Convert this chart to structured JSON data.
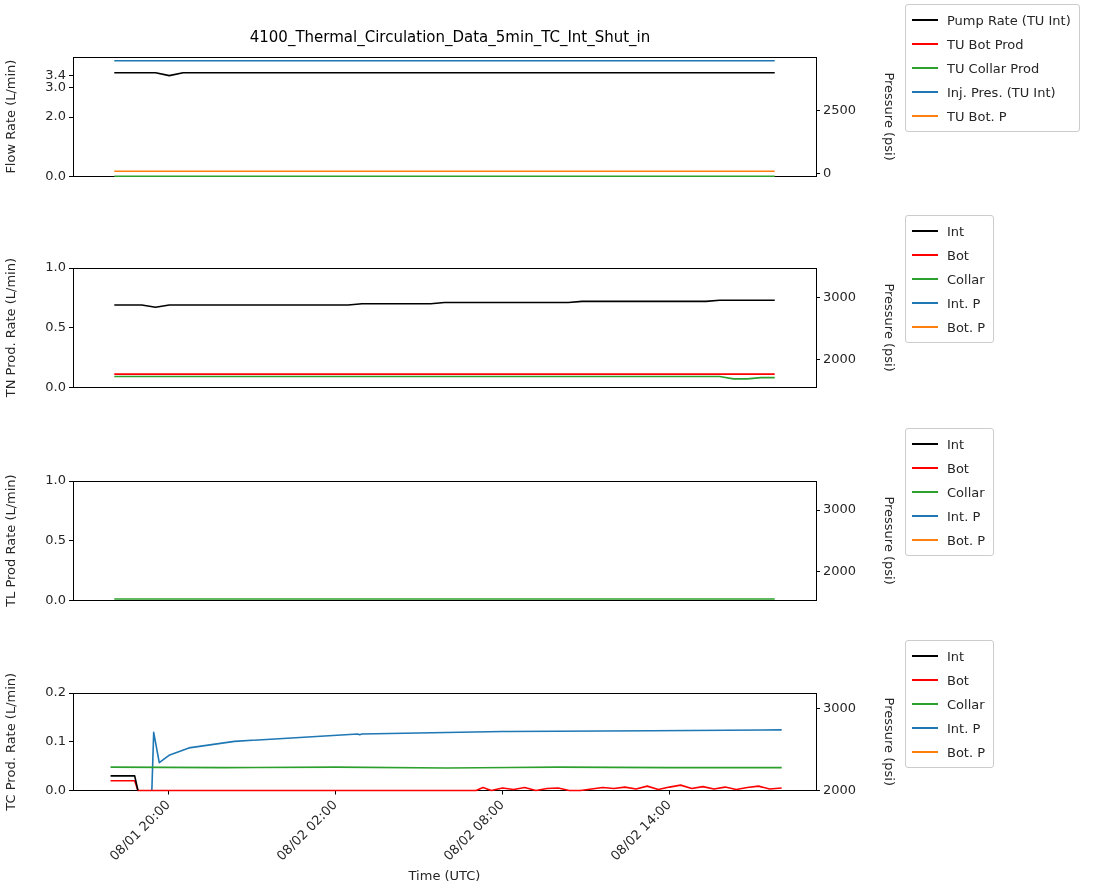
{
  "chart_data": [
    {
      "type": "line",
      "title": "4100_Thermal_Circulation_Data_5min_TC_Int_Shut_in",
      "ylabel": "Flow Rate (L/min)",
      "y2label": "Pressure (psi)",
      "marker": "none",
      "legend": "right",
      "tick_labels": "y",
      "categories": [
        null,
        null,
        null,
        null,
        null,
        null,
        null,
        null,
        null,
        null,
        null,
        null,
        null,
        null,
        null,
        null,
        null,
        null,
        null,
        null,
        null,
        null,
        null,
        null,
        null,
        null,
        null,
        null,
        null,
        null,
        null,
        null,
        null,
        null,
        null,
        null,
        null,
        null,
        null,
        null,
        null,
        null,
        null,
        null,
        null,
        null,
        null,
        null,
        null,
        null,
        null,
        null,
        null,
        null,
        null
      ],
      "ylim": [
        0,
        4.03
      ],
      "yticks": [
        {
          "value": 0,
          "label": "0.0"
        },
        {
          "value": 2,
          "label": "2.0"
        },
        {
          "value": 3,
          "label": "3.0"
        },
        {
          "value": 3.4,
          "label": "3.4"
        }
      ],
      "y2lim": [
        -100,
        4650
      ],
      "y2ticks": [
        0,
        2500
      ],
      "series": [
        {
          "name": "Pump Rate (TU Int)",
          "color": "#000000",
          "values": [
            null,
            null,
            null,
            3.5,
            3.5,
            3.5,
            3.5,
            3.4,
            3.5,
            3.5,
            3.5,
            3.5,
            3.5,
            3.5,
            3.5,
            3.5,
            3.5,
            3.5,
            3.5,
            3.5,
            3.5,
            3.5,
            3.5,
            3.5,
            3.5,
            3.5,
            3.5,
            3.5,
            3.5,
            3.5,
            3.5,
            3.5,
            3.5,
            3.5,
            3.5,
            3.5,
            3.5,
            3.5,
            3.5,
            3.5,
            3.5,
            3.5,
            3.5,
            3.5,
            3.5,
            3.5,
            3.5,
            3.5,
            3.5,
            3.5,
            3.5,
            3.5,
            null,
            null,
            null
          ]
        },
        {
          "name": "TU Bot Prod",
          "color": "#ff0000",
          "values": [
            null,
            null,
            null,
            null,
            null,
            null,
            null,
            null,
            null,
            null,
            null,
            null,
            null,
            null,
            null,
            null,
            null,
            null,
            null,
            null,
            null,
            null,
            null,
            null,
            null,
            null,
            null,
            null,
            null,
            null,
            null,
            null,
            null,
            null,
            null,
            null,
            null,
            null,
            null,
            null,
            null,
            null,
            null,
            null,
            null,
            null,
            null,
            null,
            null,
            null,
            null,
            null,
            null,
            null,
            null
          ]
        },
        {
          "name": "TU Collar Prod",
          "color": "#2ca02c",
          "values": [
            null,
            null,
            null,
            0,
            0,
            0,
            0,
            0,
            0,
            0,
            0,
            0,
            0,
            0,
            0,
            0,
            0,
            0,
            0,
            0,
            0,
            0,
            0,
            0,
            0,
            0,
            0,
            0,
            0,
            0,
            0,
            0,
            0,
            0,
            0,
            0,
            0,
            0,
            0,
            0,
            0,
            0,
            0,
            0,
            0,
            0,
            0,
            0,
            0,
            0,
            0,
            0,
            null,
            null,
            null
          ]
        },
        {
          "name": "Inj. Pres. (TU Int)",
          "color": "#1f77b4",
          "axis": "y2",
          "values": [
            null,
            null,
            null,
            4500,
            4500,
            4500,
            4500,
            4500,
            4500,
            4500,
            4500,
            4500,
            4500,
            4500,
            4500,
            4500,
            4500,
            4500,
            4500,
            4500,
            4500,
            4500,
            4500,
            4500,
            4500,
            4500,
            4500,
            4500,
            4500,
            4500,
            4500,
            4500,
            4500,
            4500,
            4500,
            4500,
            4500,
            4500,
            4500,
            4500,
            4500,
            4500,
            4500,
            4500,
            4500,
            4500,
            4500,
            4500,
            4500,
            4500,
            4500,
            4500,
            null,
            null,
            null
          ]
        },
        {
          "name": "TU Bot. P",
          "color": "#ff7f0e",
          "axis": "y2",
          "values": [
            null,
            null,
            null,
            100,
            100,
            100,
            100,
            100,
            100,
            100,
            100,
            100,
            100,
            100,
            100,
            100,
            100,
            100,
            100,
            100,
            100,
            100,
            100,
            100,
            100,
            100,
            100,
            100,
            100,
            100,
            100,
            100,
            100,
            100,
            100,
            100,
            100,
            100,
            100,
            100,
            100,
            100,
            100,
            100,
            100,
            100,
            100,
            100,
            100,
            100,
            100,
            100,
            null,
            null,
            null
          ]
        }
      ]
    },
    {
      "type": "line",
      "ylabel": "TN Prod. Rate (L/min)",
      "y2label": "Pressure (psi)",
      "marker": "none",
      "legend": "right",
      "tick_labels": "y",
      "categories": [
        null,
        null,
        null,
        null,
        null,
        null,
        null,
        null,
        null,
        null,
        null,
        null,
        null,
        null,
        null,
        null,
        null,
        null,
        null,
        null,
        null,
        null,
        null,
        null,
        null,
        null,
        null,
        null,
        null,
        null,
        null,
        null,
        null,
        null,
        null,
        null,
        null,
        null,
        null,
        null,
        null,
        null,
        null,
        null,
        null,
        null,
        null,
        null,
        null,
        null,
        null,
        null,
        null,
        null,
        null
      ],
      "ylim": [
        0,
        1
      ],
      "yticks": [
        {
          "value": 0,
          "label": "0.0"
        },
        {
          "value": 0.5,
          "label": "0.5"
        },
        {
          "value": 1,
          "label": "1.0"
        }
      ],
      "y2lim": [
        1550,
        3480
      ],
      "y2ticks": [
        2000,
        3000
      ],
      "series": [
        {
          "name": "Int",
          "color": "#000000",
          "values": [
            null,
            null,
            null,
            0.69,
            0.69,
            0.69,
            0.67,
            0.69,
            0.69,
            0.69,
            0.69,
            0.69,
            0.69,
            0.69,
            0.69,
            0.69,
            0.69,
            0.69,
            0.69,
            0.69,
            0.69,
            0.7,
            0.7,
            0.7,
            0.7,
            0.7,
            0.7,
            0.71,
            0.71,
            0.71,
            0.71,
            0.71,
            0.71,
            0.71,
            0.71,
            0.71,
            0.71,
            0.72,
            0.72,
            0.72,
            0.72,
            0.72,
            0.72,
            0.72,
            0.72,
            0.72,
            0.72,
            0.73,
            0.73,
            0.73,
            0.73,
            0.73,
            null,
            null,
            null
          ]
        },
        {
          "name": "Bot",
          "color": "#ff0000",
          "values": [
            null,
            null,
            null,
            0.11,
            0.11,
            0.11,
            0.11,
            0.11,
            0.11,
            0.11,
            0.11,
            0.11,
            0.11,
            0.11,
            0.11,
            0.11,
            0.11,
            0.11,
            0.11,
            0.11,
            0.11,
            0.11,
            0.11,
            0.11,
            0.11,
            0.11,
            0.11,
            0.11,
            0.11,
            0.11,
            0.11,
            0.11,
            0.11,
            0.11,
            0.11,
            0.11,
            0.11,
            0.11,
            0.11,
            0.11,
            0.11,
            0.11,
            0.11,
            0.11,
            0.11,
            0.11,
            0.11,
            0.11,
            0.11,
            0.11,
            0.11,
            0.11,
            null,
            null,
            null
          ]
        },
        {
          "name": "Collar",
          "color": "#2ca02c",
          "values": [
            null,
            null,
            null,
            0.09,
            0.09,
            0.09,
            0.09,
            0.09,
            0.09,
            0.09,
            0.09,
            0.09,
            0.09,
            0.09,
            0.09,
            0.09,
            0.09,
            0.09,
            0.09,
            0.09,
            0.09,
            0.09,
            0.09,
            0.09,
            0.09,
            0.09,
            0.09,
            0.09,
            0.09,
            0.09,
            0.09,
            0.09,
            0.09,
            0.09,
            0.09,
            0.09,
            0.09,
            0.09,
            0.09,
            0.09,
            0.09,
            0.09,
            0.09,
            0.09,
            0.09,
            0.09,
            0.09,
            0.09,
            0.07,
            0.07,
            0.08,
            0.08,
            null,
            null,
            null
          ]
        },
        {
          "name": "Int. P",
          "color": "#1f77b4",
          "axis": "y2",
          "values": [
            null,
            null,
            null,
            null,
            null,
            null,
            null,
            null,
            null,
            null,
            null,
            null,
            null,
            null,
            null,
            null,
            null,
            null,
            null,
            null,
            null,
            null,
            null,
            null,
            null,
            null,
            null,
            null,
            null,
            null,
            null,
            null,
            null,
            null,
            null,
            null,
            null,
            null,
            null,
            null,
            null,
            null,
            null,
            null,
            null,
            null,
            null,
            null,
            null,
            null,
            null,
            null,
            null,
            null,
            null
          ]
        },
        {
          "name": "Bot. P",
          "color": "#ff7f0e",
          "axis": "y2",
          "values": [
            null,
            null,
            null,
            null,
            null,
            null,
            null,
            null,
            null,
            null,
            null,
            null,
            null,
            null,
            null,
            null,
            null,
            null,
            null,
            null,
            null,
            null,
            null,
            null,
            null,
            null,
            null,
            null,
            null,
            null,
            null,
            null,
            null,
            null,
            null,
            null,
            null,
            null,
            null,
            null,
            null,
            null,
            null,
            null,
            null,
            null,
            null,
            null,
            null,
            null,
            null,
            null,
            null,
            null,
            null
          ]
        }
      ]
    },
    {
      "type": "line",
      "ylabel": "TL Prod Rate (L/min)",
      "y2label": "Pressure (psi)",
      "marker": "none",
      "legend": "right",
      "tick_labels": "y",
      "categories": [
        null,
        null,
        null,
        null,
        null,
        null,
        null,
        null,
        null,
        null,
        null,
        null,
        null,
        null,
        null,
        null,
        null,
        null,
        null,
        null,
        null,
        null,
        null,
        null,
        null,
        null,
        null,
        null,
        null,
        null,
        null,
        null,
        null,
        null,
        null,
        null,
        null,
        null,
        null,
        null,
        null,
        null,
        null,
        null,
        null,
        null,
        null,
        null,
        null,
        null,
        null,
        null,
        null,
        null,
        null
      ],
      "ylim": [
        0,
        1
      ],
      "yticks": [
        {
          "value": 0,
          "label": "0.0"
        },
        {
          "value": 0.5,
          "label": "0.5"
        },
        {
          "value": 1,
          "label": "1.0"
        }
      ],
      "y2lim": [
        1540,
        3470
      ],
      "y2ticks": [
        2000,
        3000
      ],
      "series": [
        {
          "name": "Int",
          "color": "#000000",
          "values": [
            null,
            null,
            null,
            null,
            null,
            null,
            null,
            null,
            null,
            null,
            null,
            null,
            null,
            null,
            null,
            null,
            null,
            null,
            null,
            null,
            null,
            null,
            null,
            null,
            null,
            null,
            null,
            null,
            null,
            null,
            null,
            null,
            null,
            null,
            null,
            null,
            null,
            null,
            null,
            null,
            null,
            null,
            null,
            null,
            null,
            null,
            null,
            null,
            null,
            null,
            null,
            null,
            null,
            null,
            null
          ]
        },
        {
          "name": "Bot",
          "color": "#ff0000",
          "values": [
            null,
            null,
            null,
            null,
            null,
            null,
            null,
            null,
            null,
            null,
            null,
            null,
            null,
            null,
            null,
            null,
            null,
            null,
            null,
            null,
            null,
            null,
            null,
            null,
            null,
            null,
            null,
            null,
            null,
            null,
            null,
            null,
            null,
            null,
            null,
            null,
            null,
            null,
            null,
            null,
            null,
            null,
            null,
            null,
            null,
            null,
            null,
            null,
            null,
            null,
            null,
            null,
            null,
            null,
            null
          ]
        },
        {
          "name": "Collar",
          "color": "#2ca02c",
          "values": [
            null,
            null,
            null,
            0.01,
            0.01,
            0.01,
            0.01,
            0.01,
            0.01,
            0.01,
            0.01,
            0.01,
            0.01,
            0.01,
            0.01,
            0.01,
            0.01,
            0.01,
            0.01,
            0.01,
            0.01,
            0.01,
            0.01,
            0.01,
            0.01,
            0.01,
            0.01,
            0.01,
            0.01,
            0.01,
            0.01,
            0.01,
            0.01,
            0.01,
            0.01,
            0.01,
            0.01,
            0.01,
            0.01,
            0.01,
            0.01,
            0.01,
            0.01,
            0.01,
            0.01,
            0.01,
            0.01,
            0.01,
            0.01,
            0.01,
            0.01,
            0.01,
            null,
            null,
            null
          ]
        },
        {
          "name": "Int. P",
          "color": "#1f77b4",
          "axis": "y2",
          "values": [
            null,
            null,
            null,
            null,
            null,
            null,
            null,
            null,
            null,
            null,
            null,
            null,
            null,
            null,
            null,
            null,
            null,
            null,
            null,
            null,
            null,
            null,
            null,
            null,
            null,
            null,
            null,
            null,
            null,
            null,
            null,
            null,
            null,
            null,
            null,
            null,
            null,
            null,
            null,
            null,
            null,
            null,
            null,
            null,
            null,
            null,
            null,
            null,
            null,
            null,
            null,
            null,
            null,
            null,
            null
          ]
        },
        {
          "name": "Bot. P",
          "color": "#ff7f0e",
          "axis": "y2",
          "values": [
            null,
            null,
            null,
            null,
            null,
            null,
            null,
            null,
            null,
            null,
            null,
            null,
            null,
            null,
            null,
            null,
            null,
            null,
            null,
            null,
            null,
            null,
            null,
            null,
            null,
            null,
            null,
            null,
            null,
            null,
            null,
            null,
            null,
            null,
            null,
            null,
            null,
            null,
            null,
            null,
            null,
            null,
            null,
            null,
            null,
            null,
            null,
            null,
            null,
            null,
            null,
            null,
            null,
            null,
            null
          ]
        }
      ]
    },
    {
      "type": "line",
      "xlabel": "Time (UTC)",
      "ylabel": "TC Prod. Rate (L/min)",
      "y2label": "Pressure (psi)",
      "marker": "none",
      "legend": "right",
      "xlim": [
        "--08-01T16:34",
        "--08-02T19:16"
      ],
      "xticks": [
        {
          "value": "--08-01T20:00",
          "label": "08/01 20:00"
        },
        {
          "value": "--08-02T02:00",
          "label": "08/02 02:00"
        },
        {
          "value": "--08-02T08:00",
          "label": "08/02 08:00"
        },
        {
          "value": "--08-02T14:00",
          "label": "08/02 14:00"
        }
      ],
      "ylim": [
        0,
        0.2
      ],
      "yticks": [
        {
          "value": 0,
          "label": "0.0"
        },
        {
          "value": 0.1,
          "label": "0.1"
        },
        {
          "value": 0.2,
          "label": "0.2"
        }
      ],
      "y2lim": [
        2000,
        3190
      ],
      "y2ticks": [
        2000,
        3000
      ],
      "series": [
        {
          "name": "Int",
          "color": "#000000",
          "x": [
            "--08-01T17:55",
            "--08-01T18:47",
            "--08-01T18:54"
          ],
          "values": [
            0.03,
            0.03,
            0
          ]
        },
        {
          "name": "Bot",
          "color": "#ff0000",
          "x": [
            "--08-01T17:55",
            "--08-01T18:47",
            "--08-01T18:54",
            "--08-02T07:03",
            "--08-02T07:18",
            "--08-02T07:36",
            "--08-02T08:00",
            "--08-02T08:24",
            "--08-02T08:48",
            "--08-02T09:12",
            "--08-02T09:36",
            "--08-02T10:00",
            "--08-02T10:24",
            "--08-02T10:48",
            "--08-02T11:12",
            "--08-02T11:36",
            "--08-02T12:00",
            "--08-02T12:24",
            "--08-02T12:48",
            "--08-02T13:12",
            "--08-02T13:36",
            "--08-02T14:00",
            "--08-02T14:24",
            "--08-02T14:48",
            "--08-02T15:12",
            "--08-02T15:36",
            "--08-02T16:00",
            "--08-02T16:24",
            "--08-02T16:48",
            "--08-02T17:12",
            "--08-02T17:36",
            "--08-02T18:02"
          ],
          "values": [
            0.02,
            0.02,
            0,
            0,
            0.006,
            0,
            0.005,
            0.002,
            0.006,
            0,
            0.004,
            0.005,
            0,
            0,
            0.003,
            0.006,
            0.004,
            0.007,
            0.003,
            0.009,
            0.002,
            0.007,
            0.011,
            0.004,
            0.008,
            0.003,
            0.007,
            0.002,
            0.006,
            0.009,
            0.003,
            0.005
          ]
        },
        {
          "name": "Collar",
          "color": "#2ca02c",
          "x": [
            "--08-01T17:55",
            "--08-01T22:00",
            "--08-02T02:00",
            "--08-02T06:00",
            "--08-02T10:00",
            "--08-02T14:00",
            "--08-02T18:02"
          ],
          "values": [
            0.048,
            0.047,
            0.048,
            0.046,
            0.048,
            0.047,
            0.047
          ]
        },
        {
          "name": "Int. P",
          "color": "#1f77b4",
          "axis": "y2",
          "x": [
            "--08-01T19:24",
            "--08-01T19:28",
            "--08-01T19:40",
            "--08-01T20:01",
            "--08-01T20:44",
            "--08-01T22:22",
            "--08-02T00:52",
            "--08-02T02:48",
            "--08-02T02:52",
            "--08-02T02:57",
            "--08-02T08:00",
            "--08-02T13:20",
            "--08-02T18:02"
          ],
          "values": [
            2000,
            2710,
            2340,
            2430,
            2520,
            2600,
            2650,
            2690,
            2680,
            2690,
            2720,
            2730,
            2740
          ]
        },
        {
          "name": "Bot. P",
          "color": "#ff7f0e",
          "axis": "y2"
        }
      ]
    }
  ]
}
